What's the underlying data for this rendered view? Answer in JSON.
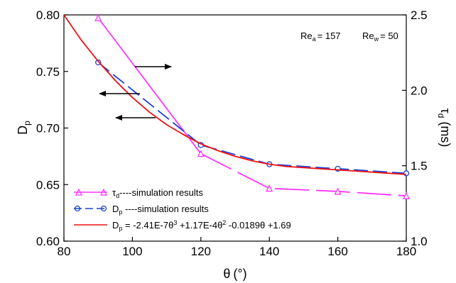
{
  "chart_data": {
    "type": "line",
    "title": "",
    "xlabel": {
      "symbol": "θ",
      "unit": "(°)"
    },
    "ylabel_left": {
      "base": "D",
      "sub": "p"
    },
    "ylabel_right": {
      "base": "τ",
      "sub": "d",
      "unit": " (ms)"
    },
    "xlim": [
      80,
      180
    ],
    "ylim_left": [
      0.6,
      0.8
    ],
    "ylim_right": [
      1.0,
      2.5
    ],
    "x_ticks": [
      80,
      100,
      120,
      140,
      160,
      180
    ],
    "x_tick_labels": [
      "80",
      "100",
      "120",
      "140",
      "160",
      "180"
    ],
    "y_left_ticks": [
      0.6,
      0.65,
      0.7,
      0.75,
      0.8
    ],
    "y_left_tick_labels": [
      "0.60",
      "0.65",
      "0.70",
      "0.75",
      "0.80"
    ],
    "y_right_ticks": [
      1.0,
      1.5,
      2.0,
      2.5
    ],
    "y_right_tick_labels": [
      "1.0",
      "1.5",
      "2.0",
      "2.5"
    ],
    "grid": false,
    "legend_position": "bottom-left",
    "annotation": {
      "re_a": "Re",
      "re_a_sub": "a",
      "re_a_val": "= 157",
      "re_w": "Re",
      "re_w_sub": "w",
      "re_w_val": "= 50"
    },
    "series": [
      {
        "name": "τd----simulation results",
        "legend": {
          "base": "τ",
          "sub": "d",
          "rest": "----simulation results"
        },
        "axis": "right",
        "color": "#ff33ff",
        "style": "solid-then-dashed",
        "marker": "triangle",
        "x": [
          90,
          120,
          140,
          160,
          180
        ],
        "y": [
          2.48,
          1.58,
          1.35,
          1.33,
          1.3
        ]
      },
      {
        "name": "Dp ----simulation results",
        "legend": {
          "base": "D",
          "sub": "p",
          "rest": " ----simulation results"
        },
        "axis": "left",
        "color": "#1f3fd6",
        "style": "dashed",
        "marker": "circle",
        "x": [
          90,
          120,
          140,
          160,
          180
        ],
        "y": [
          0.758,
          0.685,
          0.668,
          0.664,
          0.66
        ]
      },
      {
        "name": "Dp = -2.41E-7θ3 +1.17E-4θ2 -0.0189θ +1.69",
        "legend": {
          "parts": [
            {
              "t": "D"
            },
            {
              "t": "p",
              "sub": true
            },
            {
              "t": " = -2.41E-7θ"
            },
            {
              "t": "3",
              "sup": true
            },
            {
              "t": " +1.17E-4θ"
            },
            {
              "t": "2",
              "sup": true
            },
            {
              "t": " -0.0189θ +1.69"
            }
          ]
        },
        "axis": "left",
        "color": "#ee1111",
        "style": "solid",
        "marker": "none",
        "x": [
          80,
          85,
          90,
          95,
          100,
          105,
          110,
          115,
          120,
          125,
          130,
          135,
          140,
          145,
          150,
          155,
          160,
          165,
          170,
          175,
          180
        ],
        "y": [
          0.8,
          0.778,
          0.759,
          0.742,
          0.727,
          0.714,
          0.703,
          0.694,
          0.686,
          0.68,
          0.675,
          0.671,
          0.668,
          0.666,
          0.665,
          0.664,
          0.663,
          0.662,
          0.661,
          0.66,
          0.659
        ]
      }
    ]
  }
}
